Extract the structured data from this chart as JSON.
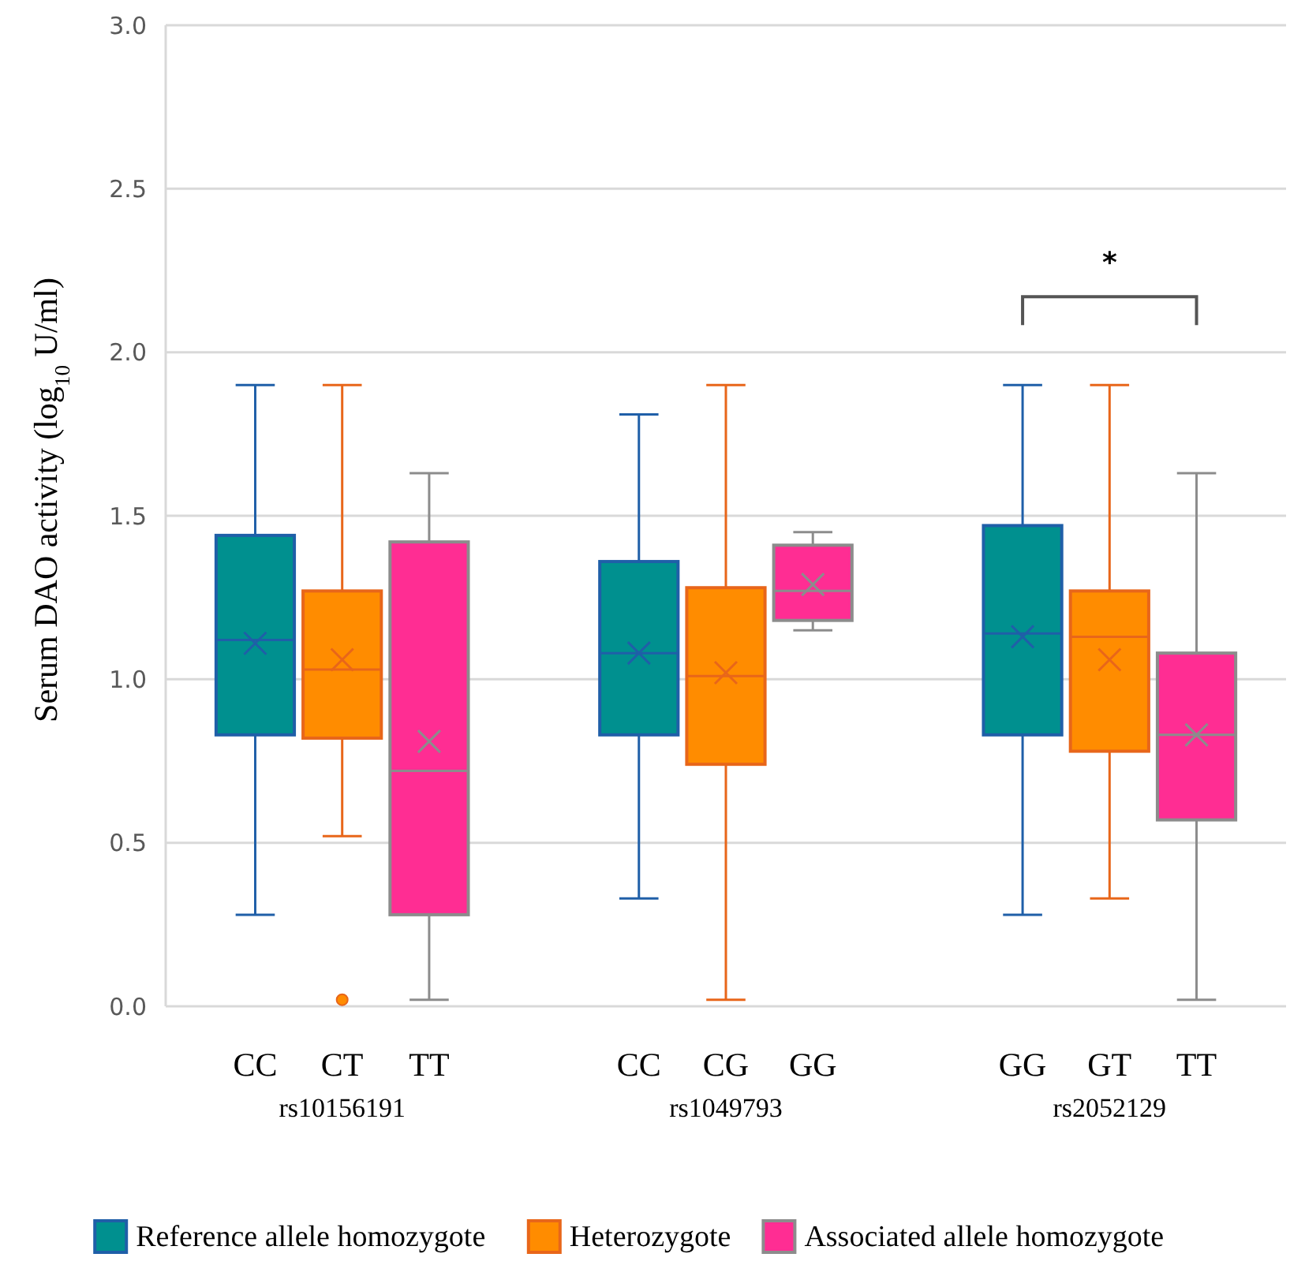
{
  "chart_data": {
    "type": "box",
    "ylabel": "Serum DAO activity (log$_{10}$ U/ml)",
    "categories": [
      "rs10156191",
      "rs1049793",
      "rs2052129"
    ],
    "series": [
      {
        "name": "Reference allele homozygote",
        "color": "#00908f",
        "boxes": [
          {
            "low": 0.28,
            "q1": 0.83,
            "median": 1.12,
            "q3": 1.44,
            "high": 1.9,
            "mean": 1.11
          },
          {
            "low": 0.33,
            "q1": 0.83,
            "median": 1.08,
            "q3": 1.36,
            "high": 1.81,
            "mean": 1.08
          },
          {
            "low": 0.28,
            "q1": 0.83,
            "median": 1.14,
            "q3": 1.47,
            "high": 1.9,
            "mean": 1.13
          }
        ]
      },
      {
        "name": "Heterozygote",
        "color": "#ff8c00",
        "boxes": [
          {
            "low": 0.52,
            "q1": 0.82,
            "median": 1.03,
            "q3": 1.27,
            "high": 1.9,
            "mean": 1.06,
            "outliers": [
              0.02
            ]
          },
          {
            "low": 0.02,
            "q1": 0.74,
            "median": 1.01,
            "q3": 1.28,
            "high": 1.9,
            "mean": 1.02
          },
          {
            "low": 0.33,
            "q1": 0.78,
            "median": 1.13,
            "q3": 1.27,
            "high": 1.9,
            "mean": 1.06
          }
        ]
      },
      {
        "name": "Associated allele homozygote",
        "color": "#ff2d93",
        "boxes": [
          {
            "low": 0.02,
            "q1": 0.28,
            "median": 0.72,
            "q3": 1.42,
            "high": 1.63,
            "mean": 0.81
          },
          {
            "low": 1.15,
            "q1": 1.18,
            "median": 1.27,
            "q3": 1.41,
            "high": 1.45,
            "mean": 1.29
          },
          {
            "low": 0.02,
            "q1": 0.57,
            "median": 0.83,
            "q3": 1.08,
            "high": 1.63,
            "mean": 0.83
          }
        ]
      }
    ],
    "ylim": [
      0,
      3
    ],
    "yticks": [
      {
        "value": 0,
        "label": "0.0"
      },
      {
        "value": 0.5,
        "label": "0.5"
      },
      {
        "value": 1,
        "label": "1.0"
      },
      {
        "value": 1.5,
        "label": "1.5"
      },
      {
        "value": 2,
        "label": "2.0"
      },
      {
        "value": 2.5,
        "label": "2.5"
      },
      {
        "value": 3,
        "label": "3.0"
      }
    ],
    "grid": true,
    "legend": "bottom",
    "marker": "cross",
    "annotations": [
      "CC",
      "CT",
      "TT",
      "CC",
      "CG",
      "GG",
      "GG",
      "GT",
      "TT",
      "*"
    ]
  }
}
